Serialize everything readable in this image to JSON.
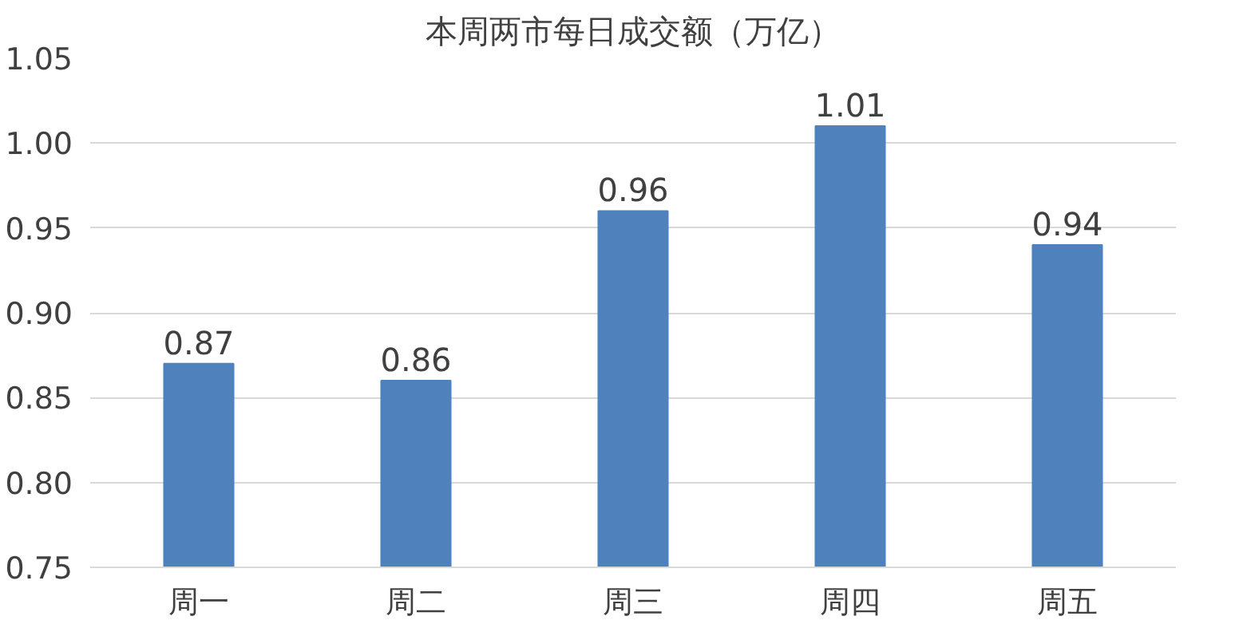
{
  "chart_data": {
    "type": "bar",
    "title": "本周两市每日成交额（万亿）",
    "categories": [
      "周一",
      "周二",
      "周三",
      "周四",
      "周五"
    ],
    "values": [
      0.87,
      0.86,
      0.96,
      1.01,
      0.94
    ],
    "color": "#4f81bd",
    "data_labels": true,
    "ylim": [
      0.75,
      1.05
    ],
    "yticks": [
      0.75,
      {
        "value": 0.8,
        "label": "0.80"
      },
      0.85,
      {
        "value": 0.9,
        "label": "0.90"
      },
      0.95,
      {
        "value": 1.0,
        "label": "1.00"
      },
      1.05
    ],
    "grid": "y"
  }
}
